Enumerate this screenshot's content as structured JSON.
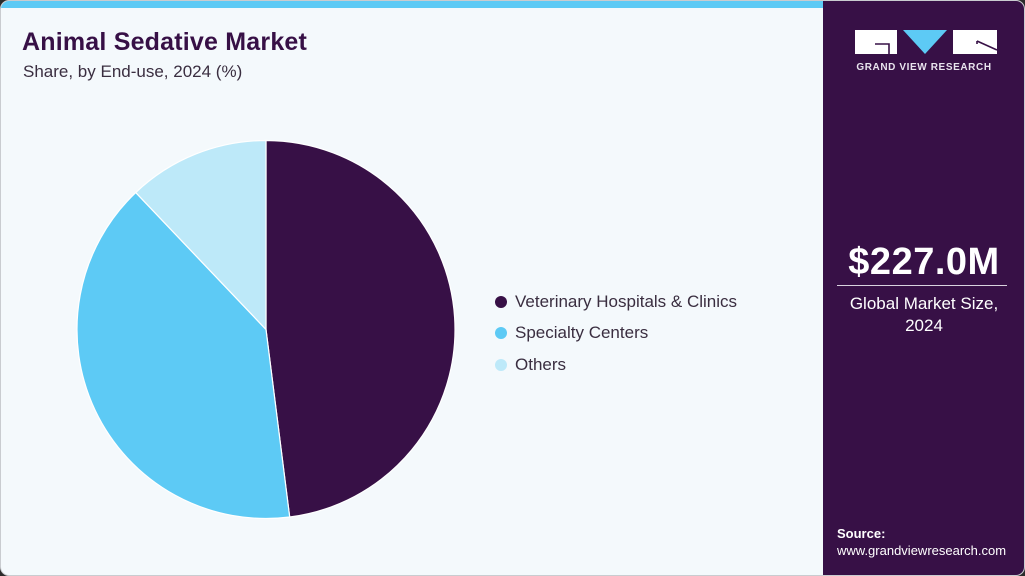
{
  "header": {
    "title": "Animal Sedative Market",
    "subtitle": "Share, by End-use, 2024 (%)"
  },
  "colors": {
    "accent_band": "#5dcaf5",
    "panel_bg": "#371046",
    "card_bg": "#f4f9fc"
  },
  "legend": {
    "items": [
      {
        "label": "Veterinary Hospitals & Clinics",
        "color": "#371046"
      },
      {
        "label": "Specialty Centers",
        "color": "#5dcaf5"
      },
      {
        "label": "Others",
        "color": "#bde9f9"
      }
    ]
  },
  "side_panel": {
    "logo_text": "GRAND VIEW RESEARCH",
    "market_value": "$227.0M",
    "market_label_line1": "Global Market Size,",
    "market_label_line2": "2024",
    "source_label": "Source:",
    "source_url": "www.grandviewresearch.com"
  },
  "chart_data": {
    "type": "pie",
    "title": "Animal Sedative Market",
    "subtitle": "Share, by End-use, 2024 (%)",
    "categories": [
      "Veterinary Hospitals & Clinics",
      "Specialty Centers",
      "Others"
    ],
    "values": [
      48.0,
      39.9,
      12.1
    ],
    "colors": [
      "#371046",
      "#5dcaf5",
      "#bde9f9"
    ],
    "start_angle_deg": 0,
    "direction": "clockwise",
    "legend_position": "right",
    "data_labels": false
  }
}
